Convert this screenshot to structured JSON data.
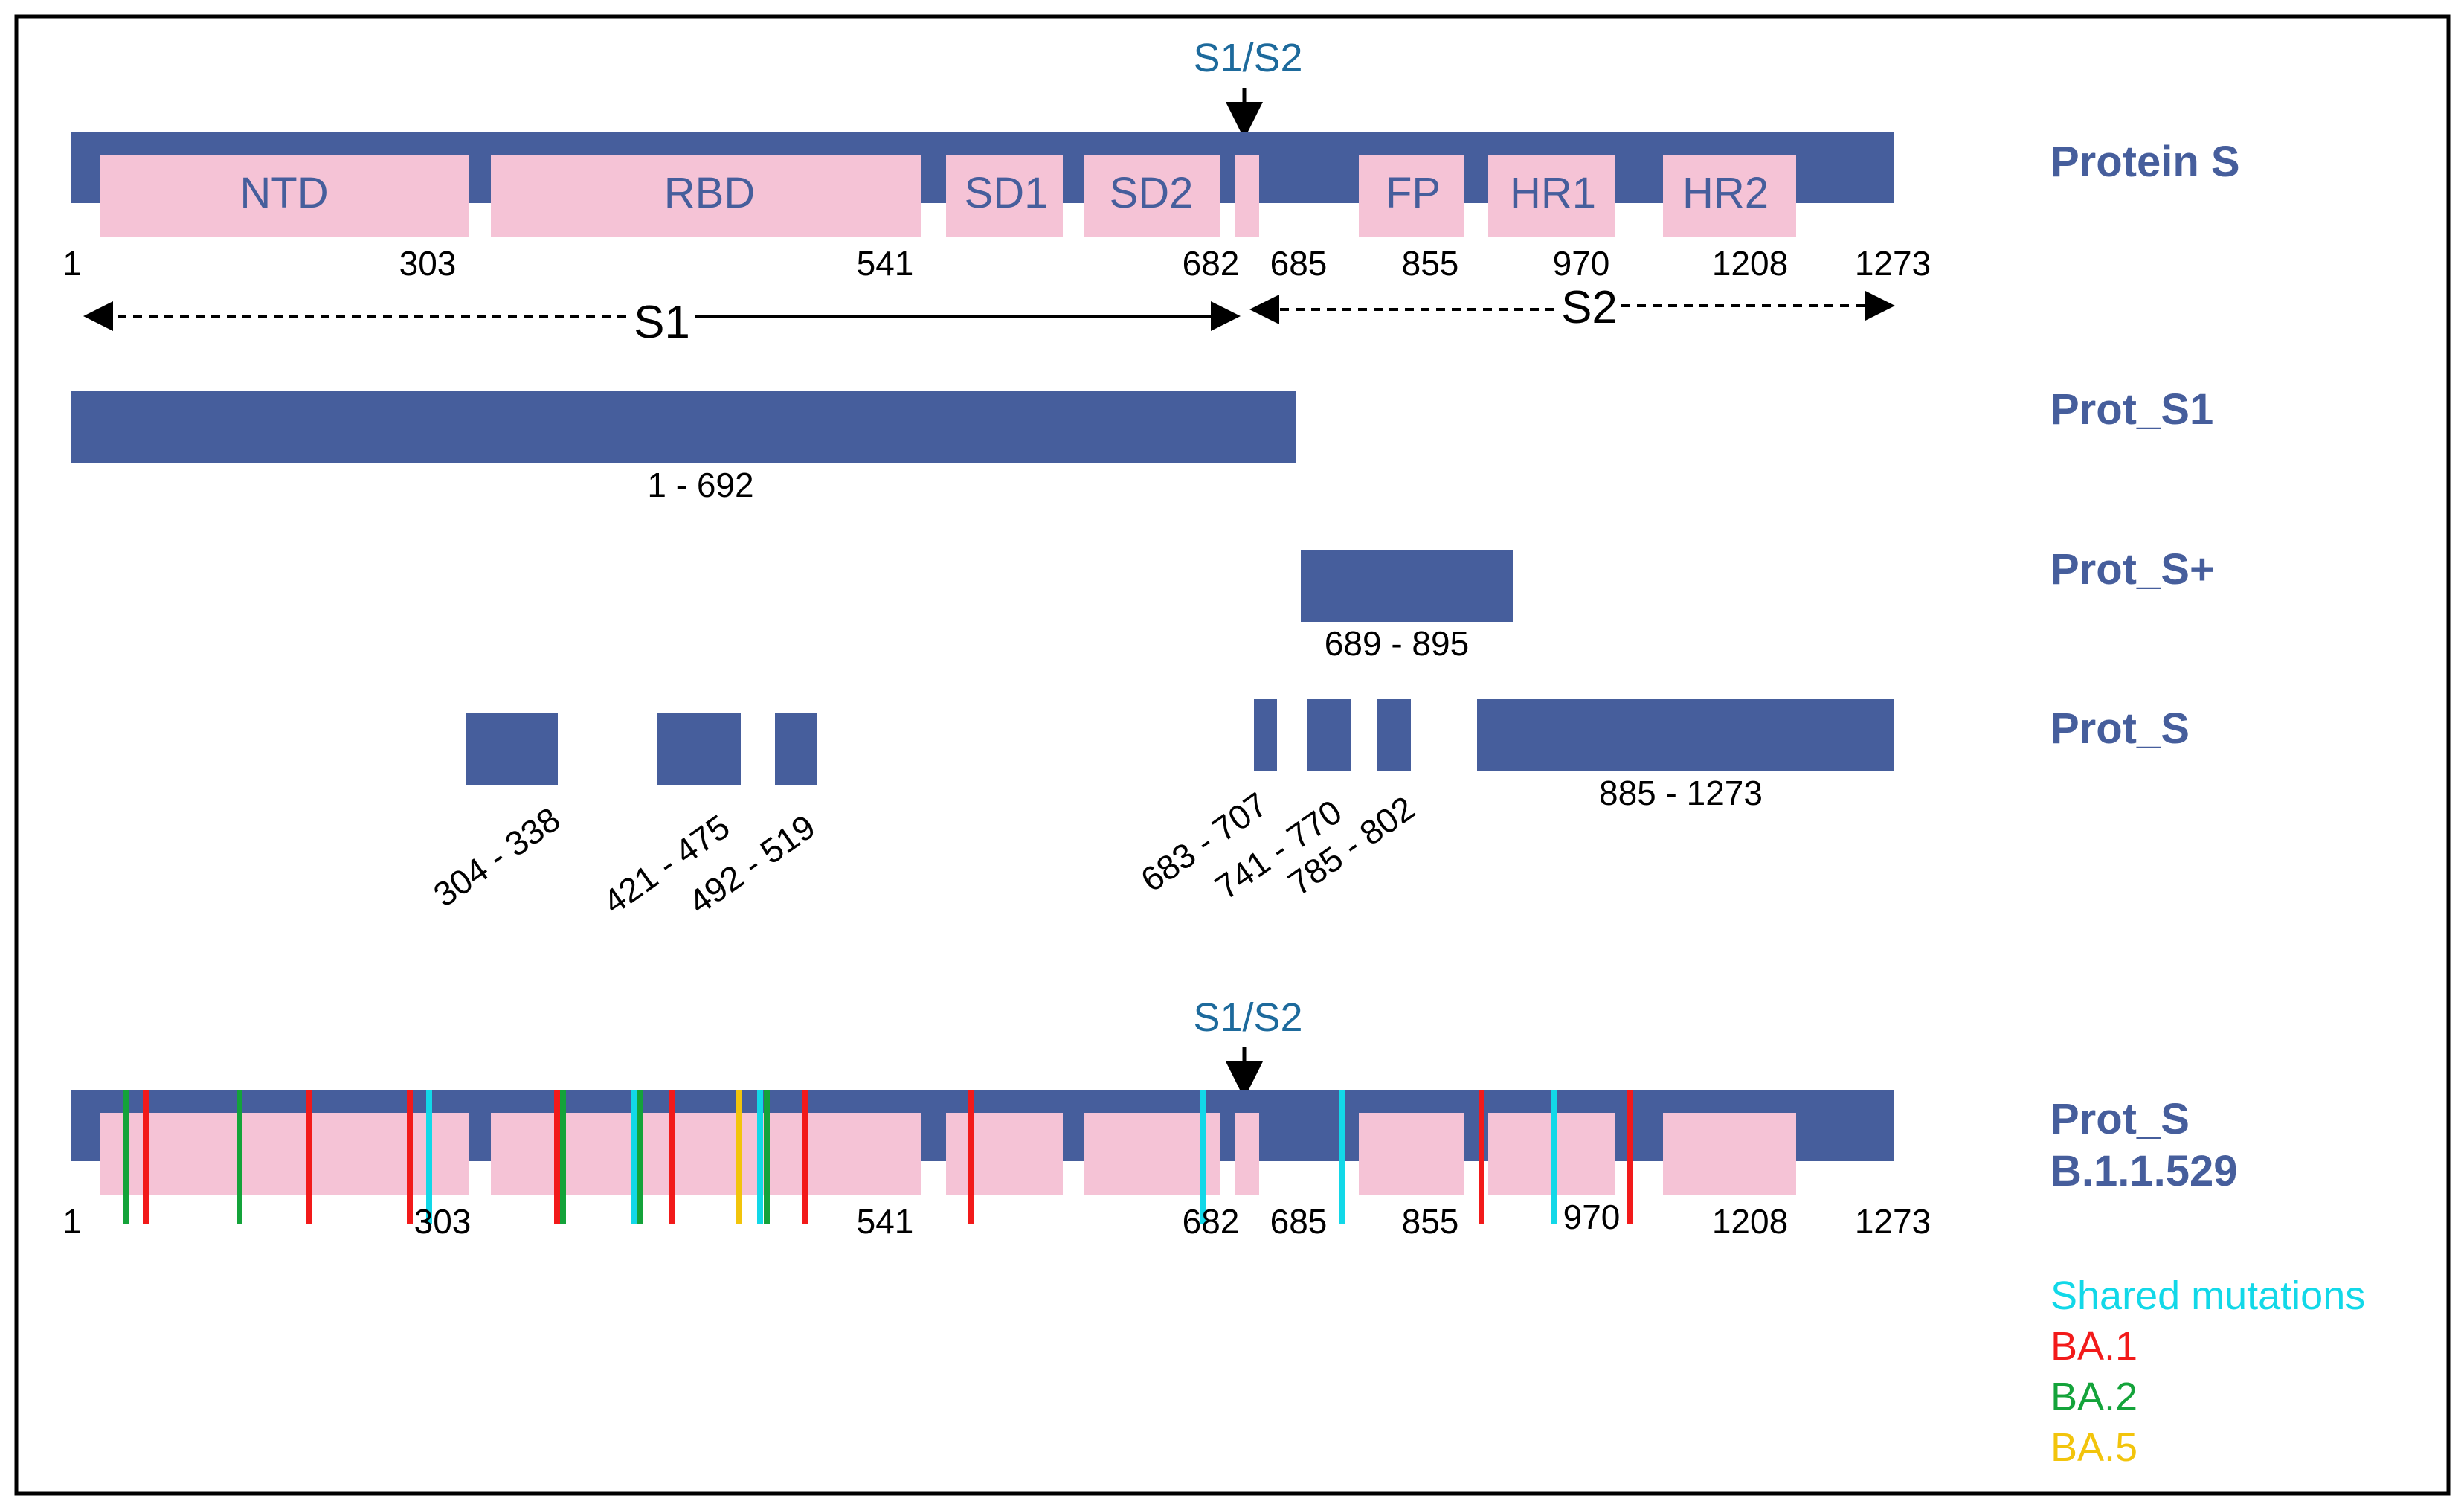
{
  "colors": {
    "bar": "#465e9c",
    "domain_box": "#f5c3d6",
    "shared": "#12d8e8",
    "ba1": "#f21a1a",
    "ba2": "#14a33a",
    "ba5": "#f2c40c"
  },
  "protein_s": {
    "label": "Protein S",
    "cleavage_label": "S1/S2",
    "domains": [
      {
        "name": "NTD"
      },
      {
        "name": "RBD"
      },
      {
        "name": "SD1"
      },
      {
        "name": "SD2"
      },
      {
        "name": ""
      },
      {
        "name": "FP"
      },
      {
        "name": "HR1"
      },
      {
        "name": "HR2"
      }
    ],
    "positions": [
      "1",
      "303",
      "541",
      "682",
      "685",
      "855",
      "970",
      "1208",
      "1273"
    ],
    "s1_label": "S1",
    "s2_label": "S2"
  },
  "constructs": [
    {
      "label": "Prot_S1",
      "fragments": [
        "1 - 692"
      ]
    },
    {
      "label": "Prot_S+",
      "fragments": [
        "689 - 895"
      ]
    },
    {
      "label": "Prot_S",
      "fragments": [
        "304 - 338",
        "421 - 475",
        "492 - 519",
        "683 - 707",
        "741 - 770",
        "785 - 802",
        "885 - 1273"
      ]
    }
  ],
  "variant": {
    "label_line1": "Prot_S",
    "label_line2": "B.1.1.529",
    "cleavage_label": "S1/S2",
    "positions": [
      "1",
      "303",
      "541",
      "682",
      "685",
      "855",
      "970",
      "1208",
      "1273"
    ],
    "mutations": [
      {
        "group": "ba2"
      },
      {
        "group": "ba1"
      },
      {
        "group": "ba2"
      },
      {
        "group": "ba1"
      },
      {
        "group": "ba1"
      },
      {
        "group": "shared"
      },
      {
        "group": "ba1"
      },
      {
        "group": "ba2"
      },
      {
        "group": "shared"
      },
      {
        "group": "ba2"
      },
      {
        "group": "ba1"
      },
      {
        "group": "ba5"
      },
      {
        "group": "shared"
      },
      {
        "group": "ba2"
      },
      {
        "group": "ba1"
      },
      {
        "group": "ba1"
      },
      {
        "group": "shared"
      },
      {
        "group": "shared"
      },
      {
        "group": "ba1"
      },
      {
        "group": "shared"
      },
      {
        "group": "ba1"
      }
    ]
  },
  "legend": [
    {
      "label": "Shared mutations",
      "group": "shared"
    },
    {
      "label": "BA.1",
      "group": "ba1"
    },
    {
      "label": "BA.2",
      "group": "ba2"
    },
    {
      "label": "BA.5",
      "group": "ba5"
    }
  ]
}
